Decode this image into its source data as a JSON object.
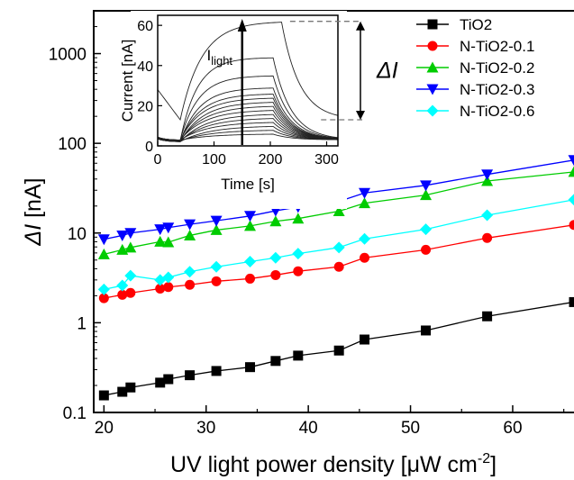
{
  "chart_data": [
    {
      "type": "line",
      "xlabel_main": "UV light power density [μW cm",
      "xlabel_sup": "-2",
      "xlabel_end": "]",
      "ylabel_italic": "ΔI",
      "ylabel_rest": " [nA]",
      "xlim": [
        19,
        66
      ],
      "ylim": [
        0.1,
        3000
      ],
      "y_scale": "log",
      "x_ticks": [
        20,
        30,
        40,
        50,
        60
      ],
      "y_ticks": [
        0.1,
        1,
        10,
        100,
        1000
      ],
      "y_tick_labels": [
        "0.1",
        "1",
        "10",
        "100",
        "1000"
      ],
      "x_tick_labels": [
        "20",
        "30",
        "40",
        "50",
        "60"
      ],
      "grid": false,
      "legend_position": "top-right",
      "x": [
        20.0,
        21.8,
        22.6,
        25.5,
        26.3,
        28.4,
        31.0,
        34.3,
        36.8,
        39.0,
        43.0,
        45.5,
        51.5,
        57.5,
        66.0
      ],
      "series": [
        {
          "name": "TiO2",
          "color": "#000000",
          "marker": "square",
          "values": [
            0.155,
            0.17,
            0.19,
            0.215,
            0.235,
            0.26,
            0.29,
            0.32,
            0.375,
            0.43,
            0.49,
            0.65,
            0.82,
            1.18,
            1.7
          ]
        },
        {
          "name": "N-TiO2-0.1",
          "color": "#ff0000",
          "marker": "circle",
          "values": [
            1.88,
            2.05,
            2.15,
            2.4,
            2.5,
            2.65,
            2.9,
            3.1,
            3.4,
            3.75,
            4.2,
            5.3,
            6.5,
            8.8,
            12.3
          ]
        },
        {
          "name": "N-TiO2-0.2",
          "color": "#00cc00",
          "marker": "triangle-up",
          "values": [
            5.8,
            6.5,
            6.9,
            8.0,
            7.9,
            9.4,
            10.8,
            12.0,
            13.5,
            14.5,
            17.5,
            21.5,
            26.5,
            38.0,
            48.0
          ]
        },
        {
          "name": "N-TiO2-0.3",
          "color": "#0000ff",
          "marker": "triangle-down",
          "values": [
            8.5,
            9.4,
            10.0,
            11.0,
            11.5,
            12.5,
            13.7,
            15.5,
            17.7,
            19.5,
            22.5,
            28.0,
            34.0,
            45.0,
            65.0
          ]
        },
        {
          "name": "N-TiO2-0.6",
          "color": "#00ffff",
          "marker": "diamond",
          "values": [
            2.35,
            2.6,
            3.35,
            3.0,
            3.2,
            3.7,
            4.2,
            4.8,
            5.3,
            5.9,
            6.9,
            8.6,
            11.0,
            15.8,
            23.5
          ]
        }
      ]
    },
    {
      "type": "line",
      "xlabel": "Time [s]",
      "ylabel": "Current [nA]",
      "xlim": [
        0,
        320
      ],
      "ylim": [
        0,
        65
      ],
      "x_ticks": [
        0,
        100,
        200,
        300
      ],
      "y_ticks": [
        0,
        20,
        40,
        60
      ],
      "arrow_label_main": "I",
      "arrow_label_sub": "light",
      "delta_label": "ΔI",
      "on_time_s": 40,
      "off_times_s": [
        220,
        205
      ],
      "baseline_nA": 2.0,
      "traces_peak_nA": [
        62,
        44,
        35,
        29,
        26,
        24,
        22,
        20,
        18,
        16,
        14,
        12,
        10,
        8,
        6
      ],
      "first_trace_tail_nA": 13
    }
  ]
}
